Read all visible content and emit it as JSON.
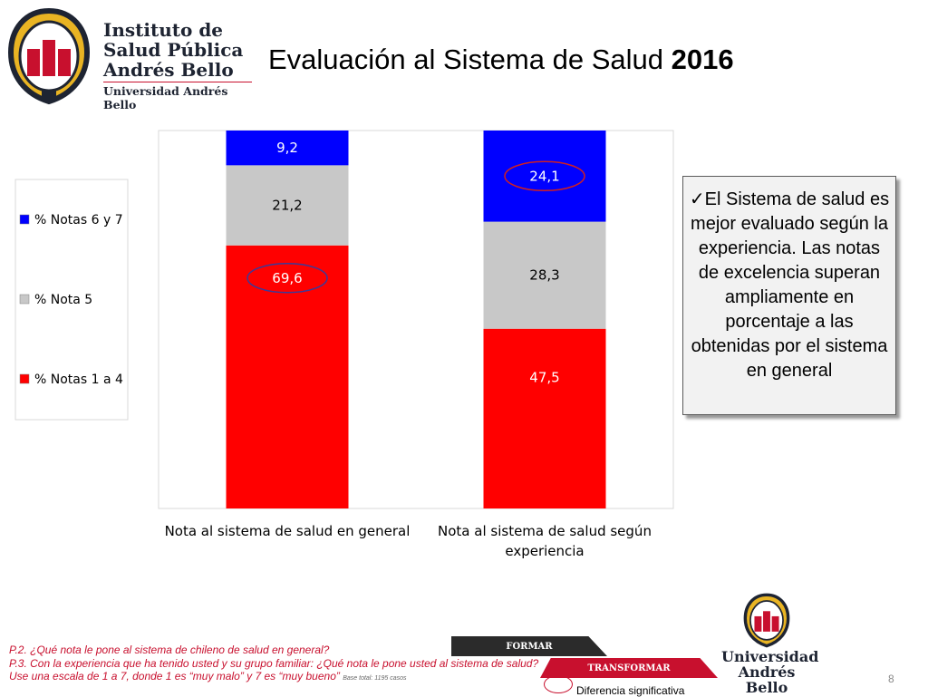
{
  "header": {
    "logo_name": "Instituto de\nSalud Pública\nAndrés Bello",
    "logo_university": "Universidad Andrés Bello",
    "title_main": "Evaluación al Sistema de Salud ",
    "title_bold": "2016"
  },
  "chart_data": {
    "type": "bar",
    "stacked": true,
    "percent_stacked": true,
    "categories": [
      "Nota al sistema de salud en general",
      "Nota al sistema de salud según experiencia"
    ],
    "category_lines": [
      [
        "Nota al sistema de salud en general"
      ],
      [
        "Nota al sistema de salud según",
        "experiencia"
      ]
    ],
    "series": [
      {
        "name": "% Notas 1 a 4",
        "values": [
          69.6,
          47.5
        ],
        "labels": [
          "69,6",
          "47,5"
        ],
        "color": "#ff0000",
        "label_color": "#ffffff"
      },
      {
        "name": "% Nota 5",
        "values": [
          21.2,
          28.3
        ],
        "labels": [
          "21,2",
          "28,3"
        ],
        "color": "#c8c8c8",
        "label_color": "#000000"
      },
      {
        "name": "% Notas 6 y 7",
        "values": [
          9.2,
          24.1
        ],
        "labels": [
          "9,2",
          "24,1"
        ],
        "color": "#0000ff",
        "label_color": "#ffffff"
      }
    ],
    "highlighted": [
      {
        "series": 0,
        "category": 0
      },
      {
        "series": 2,
        "category": 1
      }
    ],
    "highlight_ring_colors": [
      "#3a3a9a",
      "#d02020"
    ],
    "ylim": [
      0,
      100
    ],
    "legend_position": "left",
    "grid": false,
    "title": "",
    "xlabel": "",
    "ylabel": ""
  },
  "callout": {
    "text": "✓El Sistema de salud es mejor evaluado según la experiencia. Las notas de excelencia superan ampliamente en porcentaje a las obtenidas por el sistema en general"
  },
  "footer": {
    "q1": "P.2. ¿Qué nota le pone al sistema de chileno de salud en general?",
    "q2": "P.3. Con la experiencia que ha tenido usted y su grupo familiar: ¿Qué nota le pone usted al sistema de salud?",
    "q3": "Use una escala de 1 a 7, donde 1 es “muy malo” y 7 es “muy bueno”",
    "base": "Base total: 1195 casos",
    "formar": "FORMAR",
    "transformar": "TRANSFORMAR",
    "sig_label": "Diferencia significativa",
    "logo_bottom": "Universidad\nAndrés Bello",
    "page_number": "8"
  },
  "colors": {
    "brand_red": "#c8102e",
    "brand_navy": "#1e2432"
  },
  "icons": {
    "logo_top": "university-seal-icon",
    "logo_bottom": "university-seal-icon",
    "check": "checkmark-icon"
  }
}
